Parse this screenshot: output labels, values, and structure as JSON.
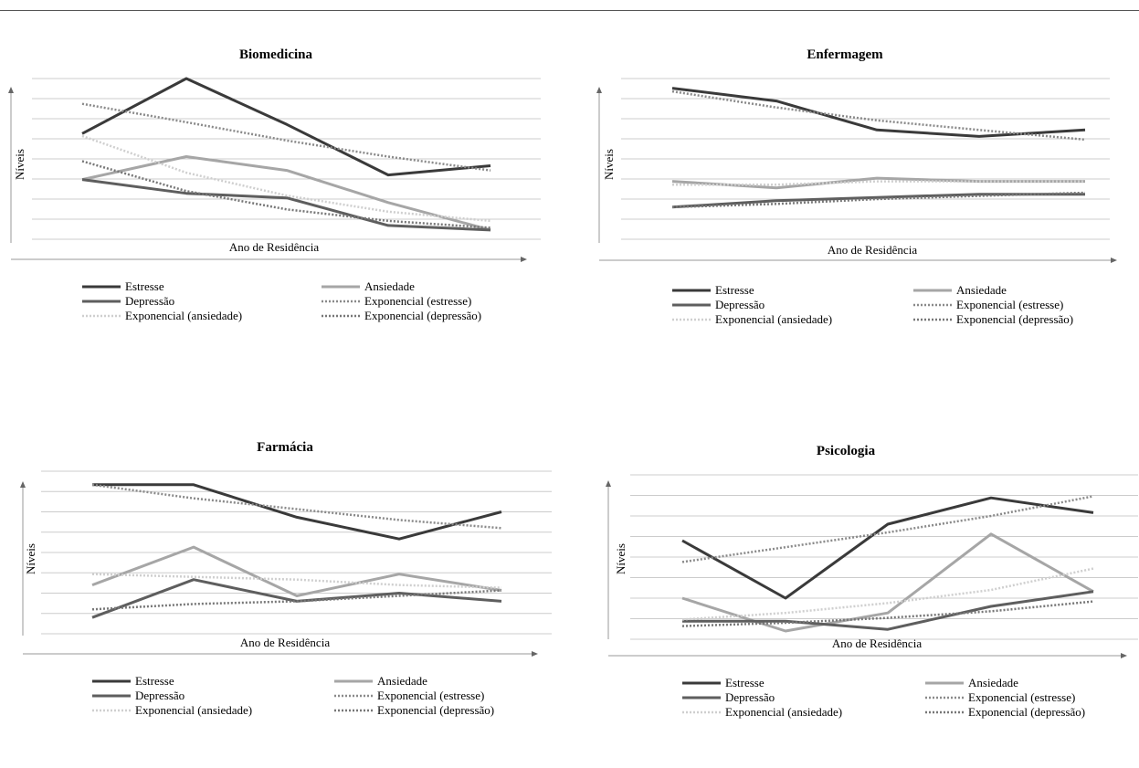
{
  "colors": {
    "estresse": "#3a3a3a",
    "ansiedade": "#a6a6a6",
    "depressao": "#5e5e5e",
    "exp_estresse": "#8a8a8a",
    "exp_ansiedade": "#cfcfcf",
    "exp_depressao": "#777777",
    "grid": "#cccccc",
    "axis": "#999999"
  },
  "legend_labels": [
    "Estresse",
    "Ansiedade",
    "Depressão",
    "Exponencial (estresse)",
    "Exponencial (ansiedade)",
    "Exponencial (depressão)"
  ],
  "chart_data": [
    {
      "type": "line",
      "title": "Biomedicina",
      "xlabel": "Ano de Residência",
      "ylabel": "Níveis",
      "x": [
        1,
        2,
        3,
        4,
        5
      ],
      "ylim": [
        0,
        7
      ],
      "grid": true,
      "legend_position": "bottom",
      "series": [
        {
          "name": "Estresse",
          "values": [
            4.6,
            7.0,
            5.0,
            2.8,
            3.2
          ]
        },
        {
          "name": "Ansiedade",
          "values": [
            2.6,
            3.6,
            3.0,
            1.6,
            0.4
          ]
        },
        {
          "name": "Depressão",
          "values": [
            2.6,
            2.0,
            1.8,
            0.6,
            0.4
          ]
        },
        {
          "name": "Exponencial (estresse)",
          "values": [
            5.9,
            5.1,
            4.3,
            3.6,
            3.0
          ]
        },
        {
          "name": "Exponencial (ansiedade)",
          "values": [
            4.5,
            2.9,
            1.9,
            1.2,
            0.8
          ]
        },
        {
          "name": "Exponencial (depressão)",
          "values": [
            3.4,
            2.1,
            1.3,
            0.8,
            0.5
          ]
        }
      ]
    },
    {
      "type": "line",
      "title": "Enfermagem",
      "xlabel": "Ano de Residência",
      "ylabel": "Níveis",
      "x": [
        1,
        2,
        3,
        4,
        5
      ],
      "ylim": [
        0,
        5
      ],
      "grid": true,
      "legend_position": "bottom",
      "series": [
        {
          "name": "Estresse",
          "values": [
            4.7,
            4.3,
            3.4,
            3.2,
            3.4
          ]
        },
        {
          "name": "Ansiedade",
          "values": [
            1.8,
            1.6,
            1.9,
            1.8,
            1.8
          ]
        },
        {
          "name": "Depressão",
          "values": [
            1.0,
            1.2,
            1.3,
            1.4,
            1.4
          ]
        },
        {
          "name": "Exponencial (estresse)",
          "values": [
            4.6,
            4.1,
            3.7,
            3.4,
            3.1
          ]
        },
        {
          "name": "Exponencial (ansiedade)",
          "values": [
            1.7,
            1.7,
            1.8,
            1.8,
            1.8
          ]
        },
        {
          "name": "Exponencial (depressão)",
          "values": [
            1.0,
            1.1,
            1.25,
            1.35,
            1.45
          ]
        }
      ]
    },
    {
      "type": "line",
      "title": "Farmácia",
      "xlabel": "Ano de Residência",
      "ylabel": "Níveis",
      "x": [
        1,
        2,
        3,
        4,
        5
      ],
      "ylim": [
        0,
        6
      ],
      "grid": true,
      "legend_position": "bottom",
      "series": [
        {
          "name": "Estresse",
          "values": [
            5.5,
            5.5,
            4.3,
            3.5,
            4.5
          ]
        },
        {
          "name": "Ansiedade",
          "values": [
            1.8,
            3.2,
            1.4,
            2.2,
            1.6
          ]
        },
        {
          "name": "Depressão",
          "values": [
            0.6,
            2.0,
            1.2,
            1.5,
            1.2
          ]
        },
        {
          "name": "Exponencial (estresse)",
          "values": [
            5.5,
            5.0,
            4.6,
            4.2,
            3.9
          ]
        },
        {
          "name": "Exponencial (ansiedade)",
          "values": [
            2.2,
            2.1,
            2.0,
            1.8,
            1.7
          ]
        },
        {
          "name": "Exponencial (depressão)",
          "values": [
            0.9,
            1.1,
            1.2,
            1.4,
            1.6
          ]
        }
      ]
    },
    {
      "type": "line",
      "title": "Psicologia",
      "xlabel": "Ano de Residência",
      "ylabel": "Níveis",
      "x": [
        1,
        2,
        3,
        4,
        5
      ],
      "ylim": [
        0,
        10
      ],
      "grid": true,
      "legend_position": "bottom",
      "series": [
        {
          "name": "Estresse",
          "values": [
            6.0,
            2.5,
            7.0,
            8.6,
            7.7
          ]
        },
        {
          "name": "Ansiedade",
          "values": [
            2.5,
            0.5,
            1.6,
            6.4,
            2.9
          ]
        },
        {
          "name": "Depressão",
          "values": [
            1.1,
            1.1,
            0.6,
            2.0,
            2.9
          ]
        },
        {
          "name": "Exponencial (estresse)",
          "values": [
            4.7,
            5.6,
            6.5,
            7.5,
            8.7
          ]
        },
        {
          "name": "Exponencial (ansiedade)",
          "values": [
            1.2,
            1.6,
            2.2,
            3.0,
            4.3
          ]
        },
        {
          "name": "Exponencial (depressão)",
          "values": [
            0.8,
            1.0,
            1.3,
            1.7,
            2.3
          ]
        }
      ]
    }
  ]
}
